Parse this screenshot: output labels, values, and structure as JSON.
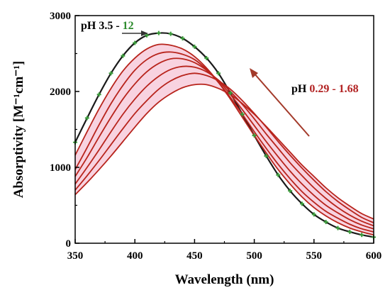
{
  "chart_data": {
    "type": "line",
    "xlabel": "Wavelength (nm)",
    "ylabel": "Absorptivity [M⁻¹cm⁻¹]",
    "xlim": [
      350,
      600
    ],
    "ylim": [
      0,
      3000
    ],
    "x_ticks": [
      350,
      400,
      450,
      500,
      550,
      600
    ],
    "y_ticks": [
      0,
      1000,
      2000,
      3000
    ],
    "grid": false,
    "legend": "none",
    "annotations": [
      {
        "prefix": "pH 3.5 - ",
        "highlight": "12",
        "prefix_color": "#000000",
        "highlight_color": "#2e8b2e"
      },
      {
        "prefix": "pH ",
        "highlight": "0.29 - 1.68",
        "prefix_color": "#000000",
        "highlight_color": "#b22222"
      }
    ],
    "colors": {
      "high_ph": "#1a1a1a",
      "high_ph_markers": "#3a9a3a",
      "low_ph": "#b8241c",
      "fill": "#f6c4d6",
      "arrow_left": "#333333",
      "arrow_up": "#a33a2a"
    },
    "series": [
      {
        "group": "pH 3.5 - 12",
        "x": [
          350,
          360,
          370,
          380,
          390,
          400,
          410,
          420,
          430,
          440,
          450,
          460,
          470,
          480,
          490,
          500,
          510,
          520,
          530,
          540,
          550,
          560,
          570,
          580,
          590,
          600
        ],
        "y": [
          1330,
          1650,
          1960,
          2240,
          2470,
          2640,
          2740,
          2770,
          2760,
          2700,
          2590,
          2440,
          2240,
          1980,
          1700,
          1420,
          1150,
          900,
          690,
          520,
          380,
          280,
          200,
          150,
          110,
          80
        ]
      },
      {
        "group": "pH 0.29 - 1.68",
        "x": [
          350,
          360,
          370,
          380,
          390,
          400,
          410,
          420,
          430,
          440,
          450,
          460,
          470,
          480,
          490,
          500,
          510,
          520,
          530,
          540,
          550,
          560,
          570,
          580,
          590,
          600
        ],
        "y": [
          1160,
          1470,
          1770,
          2040,
          2270,
          2440,
          2560,
          2620,
          2610,
          2560,
          2460,
          2310,
          2120,
          1900,
          1660,
          1420,
          1190,
          970,
          780,
          610,
          470,
          360,
          270,
          200,
          150,
          110
        ]
      },
      {
        "group": "pH 0.29 - 1.68",
        "x": [
          350,
          360,
          370,
          380,
          390,
          400,
          410,
          420,
          430,
          440,
          450,
          460,
          470,
          480,
          490,
          500,
          510,
          520,
          530,
          540,
          550,
          560,
          570,
          580,
          590,
          600
        ],
        "y": [
          970,
          1260,
          1560,
          1840,
          2080,
          2280,
          2420,
          2500,
          2520,
          2490,
          2420,
          2290,
          2120,
          1920,
          1700,
          1470,
          1250,
          1040,
          850,
          680,
          540,
          420,
          330,
          250,
          190,
          150
        ]
      },
      {
        "group": "pH 0.29 - 1.68",
        "x": [
          350,
          360,
          370,
          380,
          390,
          400,
          410,
          420,
          430,
          440,
          450,
          460,
          470,
          480,
          490,
          500,
          510,
          520,
          530,
          540,
          550,
          560,
          570,
          580,
          590,
          600
        ],
        "y": [
          880,
          1130,
          1400,
          1660,
          1900,
          2100,
          2260,
          2370,
          2430,
          2430,
          2380,
          2280,
          2140,
          1960,
          1760,
          1550,
          1340,
          1140,
          950,
          780,
          630,
          500,
          400,
          310,
          240,
          190
        ]
      },
      {
        "group": "pH 0.29 - 1.68",
        "x": [
          350,
          360,
          370,
          380,
          390,
          400,
          410,
          420,
          430,
          440,
          450,
          460,
          470,
          480,
          490,
          500,
          510,
          520,
          530,
          540,
          550,
          560,
          570,
          580,
          590,
          600
        ],
        "y": [
          780,
          1000,
          1230,
          1470,
          1700,
          1900,
          2070,
          2200,
          2290,
          2330,
          2320,
          2260,
          2150,
          2000,
          1830,
          1640,
          1440,
          1250,
          1060,
          890,
          730,
          590,
          470,
          370,
          290,
          230
        ]
      },
      {
        "group": "pH 0.29 - 1.68",
        "x": [
          350,
          360,
          370,
          380,
          390,
          400,
          410,
          420,
          430,
          440,
          450,
          460,
          470,
          480,
          490,
          500,
          510,
          520,
          530,
          540,
          550,
          560,
          570,
          580,
          590,
          600
        ],
        "y": [
          700,
          890,
          1090,
          1300,
          1510,
          1710,
          1880,
          2030,
          2140,
          2210,
          2240,
          2210,
          2140,
          2030,
          1880,
          1710,
          1530,
          1340,
          1160,
          990,
          830,
          680,
          550,
          440,
          340,
          270
        ]
      },
      {
        "group": "pH 0.29 - 1.68",
        "x": [
          350,
          360,
          370,
          380,
          390,
          400,
          410,
          420,
          430,
          440,
          450,
          460,
          470,
          480,
          490,
          500,
          510,
          520,
          530,
          540,
          550,
          560,
          570,
          580,
          590,
          600
        ],
        "y": [
          640,
          800,
          970,
          1150,
          1340,
          1530,
          1710,
          1860,
          1970,
          2050,
          2090,
          2090,
          2040,
          1960,
          1840,
          1700,
          1540,
          1370,
          1200,
          1030,
          880,
          730,
          600,
          490,
          390,
          320
        ]
      }
    ]
  }
}
